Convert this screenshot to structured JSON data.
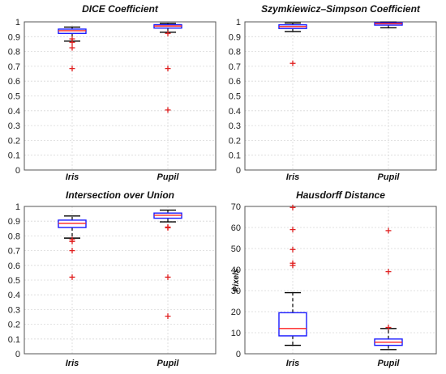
{
  "chart_data": [
    {
      "type": "box",
      "title": "DICE Coefficient",
      "ylabel": "",
      "ylim": [
        0,
        1
      ],
      "yticks": [
        "0",
        "0.1",
        "0.2",
        "0.3",
        "0.4",
        "0.5",
        "0.6",
        "0.7",
        "0.8",
        "0.9",
        "1"
      ],
      "grid": true,
      "categories": [
        "Iris",
        "Pupil"
      ],
      "boxes": [
        {
          "category": "Iris",
          "whisker_low": 0.87,
          "q1": 0.922,
          "median": 0.94,
          "q3": 0.951,
          "whisker_high": 0.965,
          "outliers": [
            0.885,
            0.862,
            0.825,
            0.685
          ]
        },
        {
          "category": "Pupil",
          "whisker_low": 0.93,
          "q1": 0.958,
          "median": 0.972,
          "q3": 0.981,
          "whisker_high": 0.99,
          "outliers": [
            0.922,
            0.685,
            0.405
          ]
        }
      ]
    },
    {
      "type": "box",
      "title": "Szymkiewicz–Simpson Coefficient",
      "ylabel": "",
      "ylim": [
        0,
        1
      ],
      "yticks": [
        "0",
        "0.1",
        "0.2",
        "0.3",
        "0.4",
        "0.5",
        "0.6",
        "0.7",
        "0.8",
        "0.9",
        "1"
      ],
      "grid": true,
      "categories": [
        "Iris",
        "Pupil"
      ],
      "boxes": [
        {
          "category": "Iris",
          "whisker_low": 0.935,
          "q1": 0.955,
          "median": 0.968,
          "q3": 0.98,
          "whisker_high": 0.992,
          "outliers": [
            0.72
          ]
        },
        {
          "category": "Pupil",
          "whisker_low": 0.96,
          "q1": 0.978,
          "median": 0.988,
          "q3": 0.994,
          "whisker_high": 0.998,
          "outliers": []
        }
      ]
    },
    {
      "type": "box",
      "title": "Intersection over Union",
      "ylabel": "",
      "ylim": [
        0,
        1
      ],
      "yticks": [
        "0",
        "0.1",
        "0.2",
        "0.3",
        "0.4",
        "0.5",
        "0.6",
        "0.7",
        "0.8",
        "0.9",
        "1"
      ],
      "grid": true,
      "categories": [
        "Iris",
        "Pupil"
      ],
      "boxes": [
        {
          "category": "Iris",
          "whisker_low": 0.785,
          "q1": 0.857,
          "median": 0.885,
          "q3": 0.907,
          "whisker_high": 0.935,
          "outliers": [
            0.775,
            0.762,
            0.7,
            0.52
          ]
        },
        {
          "category": "Pupil",
          "whisker_low": 0.895,
          "q1": 0.92,
          "median": 0.94,
          "q3": 0.955,
          "whisker_high": 0.975,
          "outliers": [
            0.86,
            0.855,
            0.52,
            0.255
          ]
        }
      ]
    },
    {
      "type": "box",
      "title": "Hausdorff Distance",
      "ylabel": "Pixels",
      "ylim": [
        0,
        70
      ],
      "yticks": [
        "0",
        "10",
        "20",
        "30",
        "40",
        "50",
        "60",
        "70"
      ],
      "grid": true,
      "categories": [
        "Iris",
        "Pupil"
      ],
      "boxes": [
        {
          "category": "Iris",
          "whisker_low": 4,
          "q1": 8.5,
          "median": 12,
          "q3": 19.5,
          "whisker_high": 29,
          "outliers": [
            69.5,
            59,
            49.5,
            43,
            42
          ]
        },
        {
          "category": "Pupil",
          "whisker_low": 2,
          "q1": 4,
          "median": 5.5,
          "q3": 7,
          "whisker_high": 12,
          "outliers": [
            58.5,
            39,
            12.5
          ]
        }
      ]
    }
  ],
  "colors": {
    "box": "#1a1aff",
    "median": "#ff2020",
    "whisker": "#000000",
    "outlier": "#e02020",
    "grid": "#d8d8d8",
    "border": "#555555"
  }
}
